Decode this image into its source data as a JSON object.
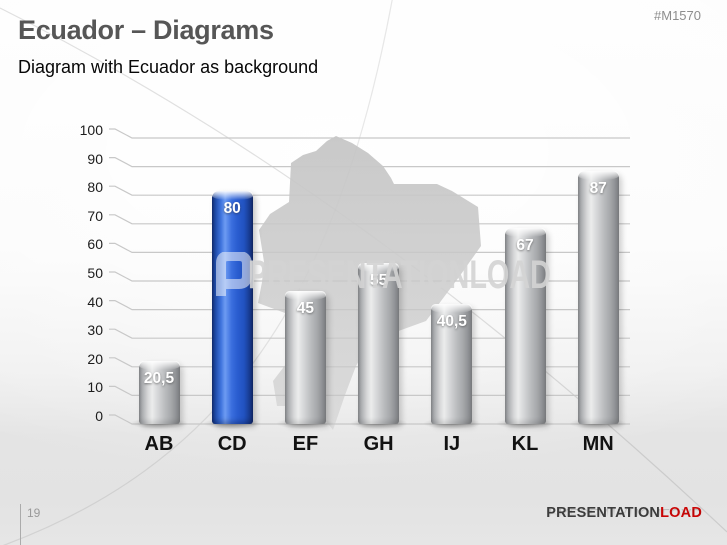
{
  "slide": {
    "title": "Ecuador – Diagrams",
    "subtitle": "Diagram with Ecuador as background",
    "product_code": "#M1570",
    "page_number": "19",
    "brand": {
      "name_primary": "PRESENTATION",
      "name_accent": "LOAD"
    },
    "watermark": {
      "logo": "P",
      "text": "PRESENTATIONLOAD"
    }
  },
  "chart_data": {
    "type": "bar",
    "title": "",
    "xlabel": "",
    "ylabel": "",
    "categories": [
      "AB",
      "CD",
      "EF",
      "GH",
      "IJ",
      "KL",
      "MN"
    ],
    "values": [
      20.5,
      80,
      45,
      55,
      40.5,
      67,
      87
    ],
    "value_labels": [
      "20,5",
      "80",
      "45",
      "55",
      "40,5",
      "67",
      "87"
    ],
    "highlight_index": 1,
    "ylim": [
      0,
      100
    ],
    "ytick_interval": 10,
    "yticks": [
      100,
      90,
      80,
      70,
      60,
      50,
      40,
      30,
      20,
      10,
      0
    ],
    "grid": true,
    "legend": false,
    "background_image": "Ecuador map silhouette",
    "colors": {
      "bar_default": "#b9bbbd",
      "bar_highlight": "#2a5ed0",
      "gridline": "#c8c8c8",
      "map": "#cbcbcb",
      "brand_accent": "#cb0707"
    }
  }
}
